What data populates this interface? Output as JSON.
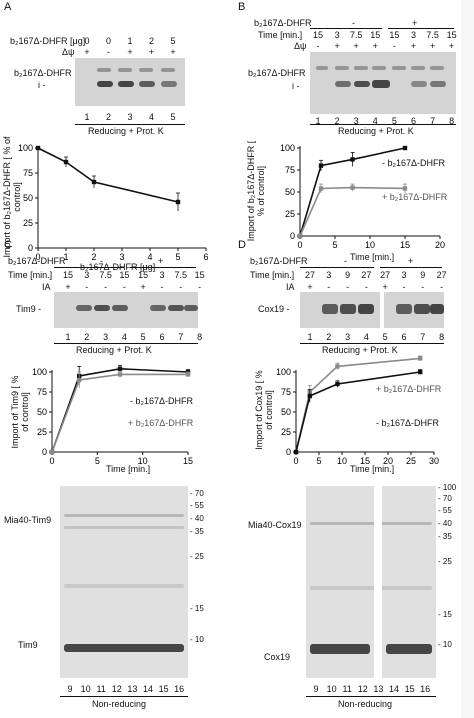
{
  "panels": {
    "A": {
      "letter": "A",
      "gel": {
        "construct": "b₂167Δ-DHFR [μg]",
        "psi": "Δψ",
        "amounts": [
          "0",
          "0",
          "1",
          "2",
          "5"
        ],
        "psi_signs": [
          "+",
          "-",
          "+",
          "+",
          "+"
        ],
        "band_label": "b₂167Δ-DHFR",
        "i_label": "i -",
        "lanes": [
          "1",
          "2",
          "3",
          "4",
          "5"
        ],
        "condition": "Reducing + Prot. K"
      },
      "chart_data": {
        "type": "line",
        "xlabel": "b₂167Δ-DHFR [μg]",
        "ylabel": "Import of b₂167Δ-DHFR [ % of control]",
        "xlim": [
          0,
          6
        ],
        "ylim": [
          0,
          100
        ],
        "xticks": [
          "0",
          "1",
          "2",
          "3",
          "4",
          "5",
          "6"
        ],
        "yticks": [
          "0",
          "25",
          "50",
          "75",
          "100"
        ],
        "series": [
          {
            "name": "",
            "x": [
              0,
              1,
              2,
              5
            ],
            "y": [
              100,
              86,
              66,
              46
            ],
            "err": [
              0,
              5,
              6,
              9
            ]
          }
        ]
      }
    },
    "B": {
      "letter": "B",
      "gel": {
        "construct": "b₂167Δ-DHFR",
        "minus": "-",
        "plus": "+",
        "time_label": "Time [min.]",
        "psi": "Δψ",
        "times": [
          "15",
          "3",
          "7.5",
          "15",
          "15",
          "3",
          "7.5",
          "15"
        ],
        "psi_signs": [
          "-",
          "+",
          "+",
          "+",
          "-",
          "+",
          "+",
          "+"
        ],
        "band_label": "b₂167Δ-DHFR",
        "i_label": "i -",
        "lanes": [
          "1",
          "2",
          "3",
          "4",
          "5",
          "6",
          "7",
          "8"
        ],
        "condition": "Reducing + Prot. K"
      },
      "chart_data": {
        "type": "line",
        "xlabel": "Time [min.]",
        "ylabel": "Import of b₂167Δ-DHFR [ % of control]",
        "xlim": [
          0,
          20
        ],
        "ylim": [
          0,
          100
        ],
        "xticks": [
          "0",
          "5",
          "10",
          "15",
          "20"
        ],
        "yticks": [
          "0",
          "25",
          "50",
          "75",
          "100"
        ],
        "series": [
          {
            "name": "- b₂167Δ-DHFR",
            "color": "#111111",
            "x": [
              0,
              3,
              7.5,
              15
            ],
            "y": [
              0,
              80,
              87,
              100
            ],
            "err": [
              0,
              6,
              8,
              0
            ]
          },
          {
            "name": "+ b₂167Δ-DHFR",
            "color": "#8a8a8a",
            "x": [
              0,
              3,
              7.5,
              15
            ],
            "y": [
              0,
              54,
              55,
              54
            ],
            "err": [
              0,
              5,
              4,
              5
            ]
          }
        ]
      }
    },
    "C": {
      "letter": "C",
      "gel": {
        "construct": "b₂167Δ-DHFR",
        "minus": "-",
        "plus": "+",
        "time_label": "Time [min.]",
        "ia_label": "IA",
        "times": [
          "15",
          "3",
          "7.5",
          "15",
          "15",
          "3",
          "7.5",
          "15"
        ],
        "ia_signs": [
          "+",
          "-",
          "-",
          "-",
          "+",
          "-",
          "-",
          "-"
        ],
        "band_label": "Tim9 -",
        "lanes": [
          "1",
          "2",
          "3",
          "4",
          "5",
          "6",
          "7",
          "8"
        ],
        "condition": "Reducing + Prot. K"
      },
      "chart_data": {
        "type": "line",
        "xlabel": "Time [min.]",
        "ylabel": "Import of Tim9 [ % of control]",
        "xlim": [
          0,
          15
        ],
        "ylim": [
          0,
          100
        ],
        "xticks": [
          "0",
          "5",
          "10",
          "15"
        ],
        "yticks": [
          "0",
          "25",
          "50",
          "75",
          "100"
        ],
        "series": [
          {
            "name": "- b₂167Δ-DHFR",
            "color": "#111111",
            "x": [
              0,
              3,
              7.5,
              15
            ],
            "y": [
              0,
              95,
              104,
              100
            ],
            "err": [
              0,
              12,
              4,
              3
            ]
          },
          {
            "name": "+ b₂167Δ-DHFR",
            "color": "#8a8a8a",
            "x": [
              0,
              3,
              7.5,
              15
            ],
            "y": [
              0,
              90,
              97,
              97
            ],
            "err": [
              0,
              10,
              4,
              3
            ]
          }
        ]
      },
      "nonreducing": {
        "top_label": "Mia40-Tim9",
        "bottom_label": "Tim9",
        "markers": [
          "70",
          "55",
          "40",
          "35",
          "25",
          "15",
          "10"
        ],
        "lanes": [
          "9",
          "10",
          "11",
          "12",
          "13",
          "14",
          "15",
          "16"
        ],
        "condition": "Non-reducing"
      }
    },
    "D": {
      "letter": "D",
      "gel": {
        "construct": "b₂167Δ-DHFR",
        "minus": "-",
        "plus": "+",
        "time_label": "Time [min.]",
        "ia_label": "IA",
        "times": [
          "27",
          "3",
          "9",
          "27",
          "27",
          "3",
          "9",
          "27"
        ],
        "ia_signs": [
          "+",
          "-",
          "-",
          "-",
          "+",
          "-",
          "-",
          "-"
        ],
        "band_label": "Cox19 -",
        "lanes": [
          "1",
          "2",
          "3",
          "4",
          "5",
          "6",
          "7",
          "8"
        ],
        "condition": "Reducing + Prot. K"
      },
      "chart_data": {
        "type": "line",
        "xlabel": "Time [min.]",
        "ylabel": "Import of Cox19 [ % of control]",
        "xlim": [
          0,
          30
        ],
        "ylim": [
          0,
          100
        ],
        "xticks": [
          "0",
          "5",
          "10",
          "15",
          "20",
          "25",
          "30"
        ],
        "yticks": [
          "0",
          "25",
          "50",
          "75",
          "100"
        ],
        "series": [
          {
            "name": "+ b₂167Δ-DHFR",
            "color": "#8a8a8a",
            "x": [
              0,
              3,
              9,
              27
            ],
            "y": [
              0,
              75,
              107,
              117
            ],
            "err": [
              0,
              8,
              4,
              3
            ]
          },
          {
            "name": "- b₂167Δ-DHFR",
            "color": "#111111",
            "x": [
              0,
              3,
              9,
              27
            ],
            "y": [
              0,
              70,
              85,
              100
            ],
            "err": [
              0,
              8,
              4,
              3
            ]
          }
        ]
      },
      "nonreducing": {
        "top_label": "Mia40-Cox19",
        "bottom_label": "Cox19",
        "markers": [
          "100",
          "70",
          "55",
          "40",
          "35",
          "25",
          "15",
          "10"
        ],
        "lanes": [
          "9",
          "10",
          "11",
          "12",
          "13",
          "14",
          "15",
          "16"
        ],
        "condition": "Non-reducing"
      }
    }
  }
}
